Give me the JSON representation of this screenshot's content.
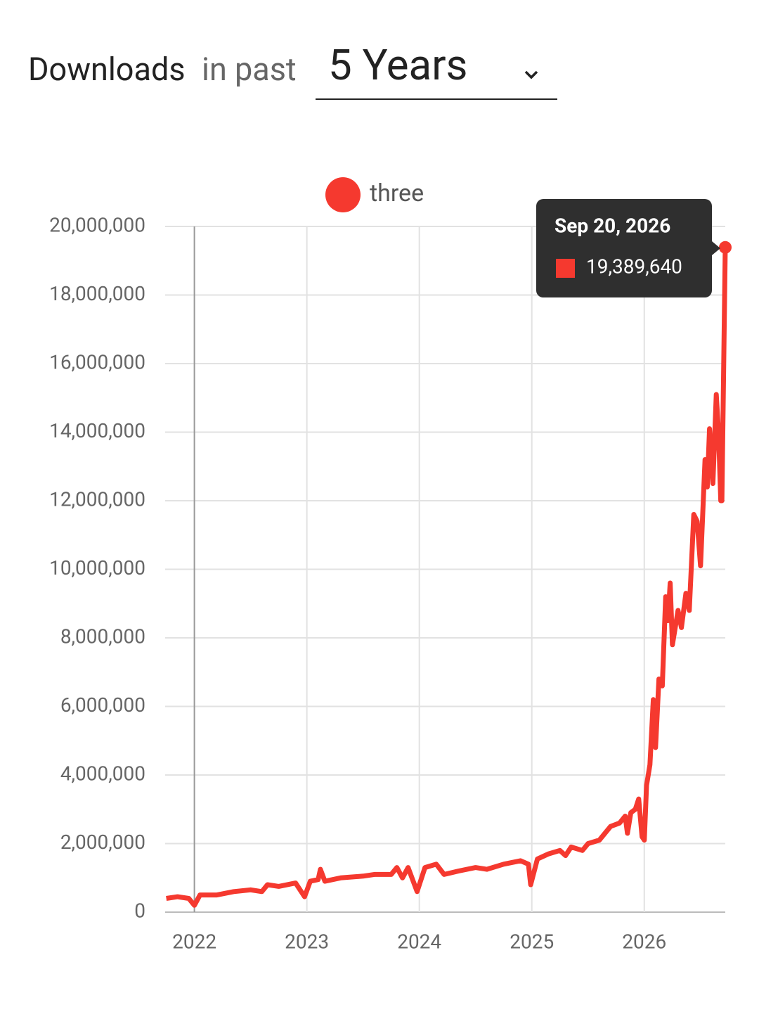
{
  "header": {
    "label": "Downloads",
    "label_suffix": "in past",
    "range_select": "5 Years"
  },
  "chart_data": {
    "type": "line",
    "x": [
      2021.75,
      2021.85,
      2021.95,
      2022.0,
      2022.05,
      2022.2,
      2022.35,
      2022.5,
      2022.6,
      2022.65,
      2022.75,
      2022.9,
      2022.98,
      2023.03,
      2023.1,
      2023.12,
      2023.16,
      2023.3,
      2023.5,
      2023.6,
      2023.75,
      2023.8,
      2023.85,
      2023.9,
      2023.98,
      2024.05,
      2024.15,
      2024.22,
      2024.35,
      2024.5,
      2024.6,
      2024.75,
      2024.9,
      2024.97,
      2024.99,
      2025.05,
      2025.15,
      2025.25,
      2025.3,
      2025.35,
      2025.45,
      2025.5,
      2025.6,
      2025.7,
      2025.78,
      2025.83,
      2025.85,
      2025.88,
      2025.92,
      2025.95,
      2025.98,
      2026.0,
      2026.02,
      2026.05,
      2026.08,
      2026.1,
      2026.13,
      2026.16,
      2026.19,
      2026.21,
      2026.23,
      2026.25,
      2026.3,
      2026.33,
      2026.37,
      2026.4,
      2026.44,
      2026.47,
      2026.5,
      2026.54,
      2026.56,
      2026.58,
      2026.61,
      2026.64,
      2026.66,
      2026.68,
      2026.69,
      2026.72
    ],
    "series": [
      {
        "name": "three",
        "color": "#f5392f",
        "values": [
          400000,
          450000,
          400000,
          200000,
          500000,
          500000,
          600000,
          650000,
          600000,
          800000,
          750000,
          850000,
          450000,
          900000,
          950000,
          1250000,
          900000,
          1000000,
          1050000,
          1100000,
          1100000,
          1300000,
          1000000,
          1300000,
          600000,
          1300000,
          1400000,
          1100000,
          1200000,
          1300000,
          1250000,
          1400000,
          1500000,
          1400000,
          800000,
          1550000,
          1700000,
          1800000,
          1650000,
          1900000,
          1800000,
          2000000,
          2100000,
          2500000,
          2600000,
          2800000,
          2300000,
          2900000,
          3000000,
          3300000,
          2200000,
          2100000,
          3700000,
          4300000,
          6200000,
          4800000,
          6800000,
          6600000,
          9200000,
          8500000,
          9600000,
          7800000,
          8800000,
          8300000,
          9300000,
          8800000,
          11600000,
          11400000,
          10100000,
          13200000,
          12400000,
          14100000,
          12500000,
          15100000,
          14000000,
          12000000,
          12000000,
          19389640
        ]
      }
    ],
    "xlim": [
      2021.74,
      2026.72
    ],
    "xticks": [
      2022,
      2023,
      2024,
      2025,
      2026
    ],
    "ylim": [
      0,
      20000000
    ],
    "yticks": [
      {
        "value": 0,
        "label": "0"
      },
      {
        "value": 2000000,
        "label": "2,000,000"
      },
      {
        "value": 4000000,
        "label": "4,000,000"
      },
      {
        "value": 6000000,
        "label": "6,000,000"
      },
      {
        "value": 8000000,
        "label": "8,000,000"
      },
      {
        "value": 10000000,
        "label": "10,000,000"
      },
      {
        "value": 12000000,
        "label": "12,000,000"
      },
      {
        "value": 14000000,
        "label": "14,000,000"
      },
      {
        "value": 16000000,
        "label": "16,000,000"
      },
      {
        "value": 18000000,
        "label": "18,000,000"
      },
      {
        "value": 20000000,
        "label": "20,000,000"
      }
    ],
    "grid": true,
    "legend": "top",
    "tooltip": {
      "date": "Sep 20, 2026",
      "value": 19389640,
      "value_label": "19,389,640"
    }
  }
}
